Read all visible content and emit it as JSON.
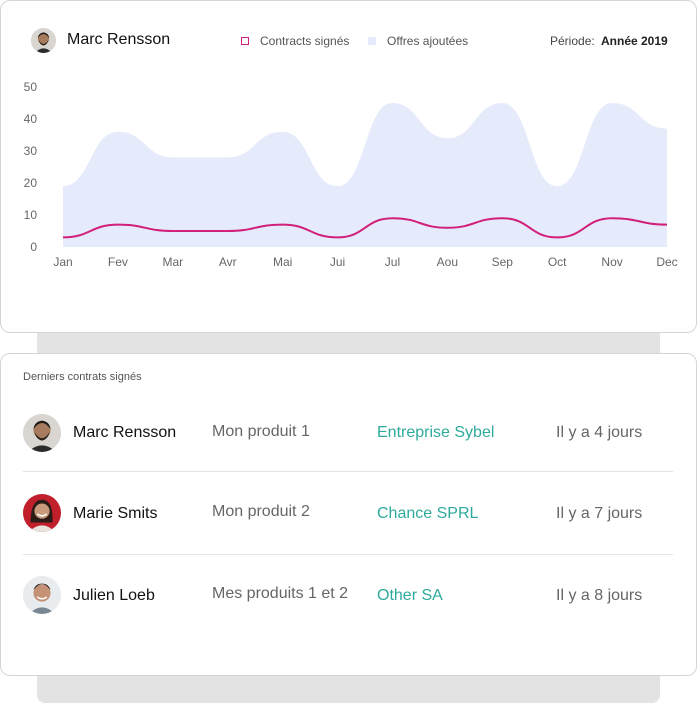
{
  "header": {
    "user_name": "Marc Rensson",
    "legend": [
      {
        "label": "Contracts signés",
        "color": "#d11f7a"
      },
      {
        "label": "Offres ajoutées",
        "color": "#e6ebfb"
      }
    ],
    "period_label": "Période:",
    "period_value": "Année 2019"
  },
  "chart_data": {
    "type": "area",
    "categories": [
      "Jan",
      "Fev",
      "Mar",
      "Avr",
      "Mai",
      "Jui",
      "Jul",
      "Aou",
      "Sep",
      "Oct",
      "Nov",
      "Dec"
    ],
    "series": [
      {
        "name": "Offres ajoutées",
        "type": "area",
        "color": "#e6ebfb",
        "values": [
          19,
          36,
          28,
          28,
          36,
          19,
          45,
          34,
          45,
          19,
          45,
          37
        ]
      },
      {
        "name": "Contracts signés",
        "type": "line",
        "color": "#d11f7a",
        "values": [
          3,
          7,
          5,
          5,
          7,
          3,
          9,
          6,
          9,
          3,
          9,
          7
        ]
      }
    ],
    "yticks": [
      0,
      10,
      20,
      30,
      40,
      50
    ],
    "ylim": [
      0,
      50
    ],
    "grid": false
  },
  "contracts": {
    "title": "Derniers contrats signés",
    "rows": [
      {
        "name": "Marc Rensson",
        "product": "Mon produit 1",
        "company": "Entreprise Sybel",
        "time": "Il y a 4 jours"
      },
      {
        "name": "Marie Smits",
        "product": "Mon produit 2",
        "company": "Chance SPRL",
        "time": "Il y a 7 jours"
      },
      {
        "name": "Julien Loeb",
        "product": "Mes produits 1 et 2",
        "company": "Other SA",
        "time": "Il y a 8 jours"
      }
    ]
  },
  "colors": {
    "accent": "#2eaa9c",
    "line": "#d11f7a",
    "area": "#e6ebfb"
  }
}
